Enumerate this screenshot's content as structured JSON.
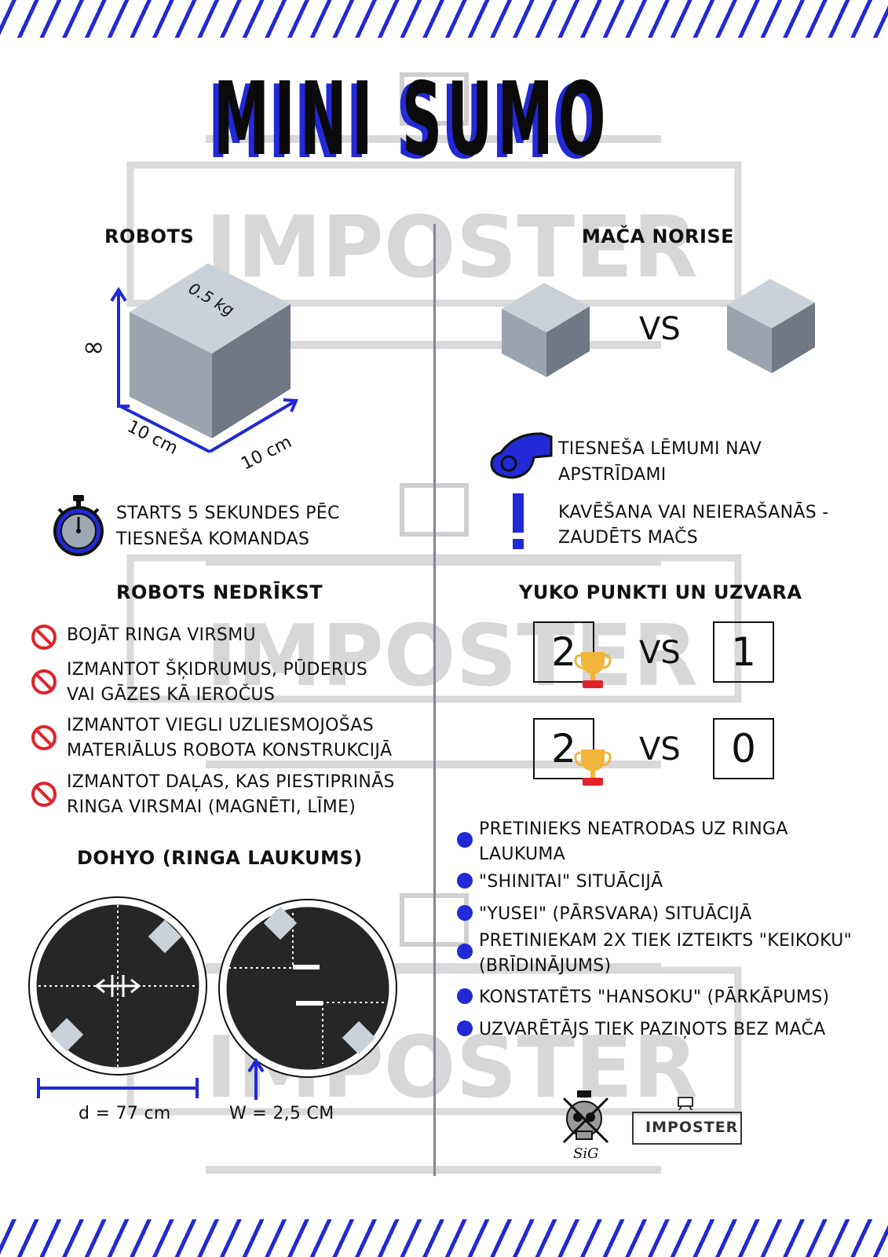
{
  "title": "MINI SUMO",
  "colors": {
    "accent": "#2229d6",
    "cube_top": "#cbd1d9",
    "cube_left": "#9aa3ae",
    "cube_right": "#6f7883",
    "prohibit": "#e0232a",
    "ring": "#262626"
  },
  "watermark": {
    "text": "IMPOSTER"
  },
  "robots": {
    "heading": "ROBOTS",
    "weight_label": "0.5 kg",
    "height_label": "∞",
    "width_label": "10 cm",
    "depth_label": "10 cm",
    "start_line1": "STARTS 5 SEKUNDES PĒC",
    "start_line2": "TIESNEŠA KOMANDAS"
  },
  "match": {
    "heading": "MAČA NORISE",
    "vs": "VS",
    "rule1_line1": "TIESNEŠA LĒMUMI NAV",
    "rule1_line2": "APSTRĪDAMI",
    "rule2_line1": "KAVĒŠANA VAI NEIERAŠANĀS -",
    "rule2_line2": "ZAUDĒTS MAČS"
  },
  "forbidden": {
    "heading": "ROBOTS NEDRĪKST",
    "items": [
      {
        "line1": "BOJĀT RINGA VIRSMU",
        "line2": ""
      },
      {
        "line1": "IZMANTOT ŠĶIDRUMUS, PŪDERUS",
        "line2": "VAI GĀZES KĀ IEROČUS"
      },
      {
        "line1": "IZMANTOT VIEGLI UZLIESMOJOŠAS",
        "line2": "MATERIĀLUS ROBOTA KONSTRUKCIJĀ"
      },
      {
        "line1": "IZMANTOT DAĻAS, KAS PIESTIPRINĀS",
        "line2": "RINGA VIRSMAI (MAGNĒTI, LĪME)"
      }
    ]
  },
  "dohyo": {
    "heading": "DOHYO (RINGA LAUKUMS)",
    "diameter_label": "d = 77 cm",
    "width_label": "W = 2,5 CM"
  },
  "yuko": {
    "heading": "YUKO PUNKTI UN UZVARA",
    "scores": [
      {
        "left": "2",
        "vs": "VS",
        "right": "1"
      },
      {
        "left": "2",
        "vs": "VS",
        "right": "0"
      }
    ],
    "bullets": [
      {
        "line1": "PRETINIEKS NEATRODAS UZ RINGA",
        "line2": "LAUKUMA"
      },
      {
        "line1": "\"SHINITAI\" SITUĀCIJĀ",
        "line2": ""
      },
      {
        "line1": "\"YUSEI\" (PĀRSVARA) SITUĀCIJĀ",
        "line2": ""
      },
      {
        "line1": "PRETINIEKAM 2X TIEK IZTEIKTS \"KEIKOKU\"",
        "line2": "(BRĪDINĀJUMS)"
      },
      {
        "line1": "KONSTATĒTS \"HANSOKU\" (PĀRKĀPUMS)",
        "line2": ""
      },
      {
        "line1": "UZVARĒTĀJS TIEK PAZIŅOTS BEZ MAČA",
        "line2": ""
      }
    ]
  },
  "footer": {
    "logo_text": "SiG",
    "imposter_label": "IMPOSTER"
  }
}
